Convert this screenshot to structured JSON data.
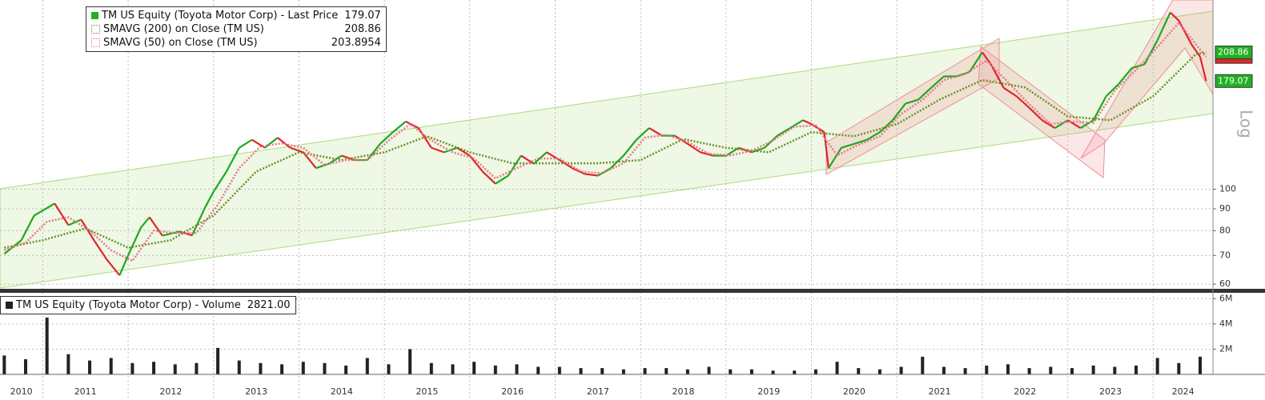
{
  "chart_data": [
    {
      "type": "line",
      "log_scale": true,
      "scale_label": "Log",
      "grid": true,
      "legend": "top-left",
      "xlim": [
        2010.5,
        2024.7
      ],
      "xticks": [
        2010,
        2011,
        2012,
        2013,
        2014,
        2015,
        2016,
        2017,
        2018,
        2019,
        2020,
        2021,
        2022,
        2023,
        2024
      ],
      "ylim": [
        58.5,
        277
      ],
      "yticks": [
        60,
        70,
        80,
        90,
        100
      ],
      "series": [
        {
          "name": "TM US Equity (Toyota Motor Corp) - Last Price",
          "color": "#22b022",
          "up_color": "#1fa81f",
          "down_color": "#e0262b",
          "last": 179.07,
          "x": [
            2010.55,
            2010.75,
            2010.9,
            2011.14,
            2011.3,
            2011.45,
            2011.6,
            2011.75,
            2011.9,
            2012.0,
            2012.15,
            2012.25,
            2012.4,
            2012.6,
            2012.75,
            2012.9,
            2013.0,
            2013.15,
            2013.3,
            2013.45,
            2013.6,
            2013.75,
            2013.9,
            2014.05,
            2014.2,
            2014.35,
            2014.5,
            2014.65,
            2014.8,
            2014.95,
            2015.1,
            2015.25,
            2015.4,
            2015.55,
            2015.7,
            2015.85,
            2016.0,
            2016.15,
            2016.3,
            2016.45,
            2016.6,
            2016.75,
            2016.9,
            2017.05,
            2017.2,
            2017.35,
            2017.5,
            2017.65,
            2017.8,
            2017.95,
            2018.1,
            2018.25,
            2018.4,
            2018.55,
            2018.7,
            2018.85,
            2019.0,
            2019.15,
            2019.3,
            2019.45,
            2019.6,
            2019.75,
            2019.9,
            2020.0,
            2020.15,
            2020.2,
            2020.35,
            2020.5,
            2020.65,
            2020.8,
            2020.95,
            2021.1,
            2021.25,
            2021.4,
            2021.55,
            2021.7,
            2021.85,
            2022.0,
            2022.1,
            2022.25,
            2022.4,
            2022.55,
            2022.7,
            2022.85,
            2023.0,
            2023.15,
            2023.3,
            2023.45,
            2023.6,
            2023.75,
            2023.9,
            2024.05,
            2024.2,
            2024.3,
            2024.45,
            2024.55,
            2024.62
          ],
          "values": [
            70.6,
            76,
            86.8,
            92.6,
            82.4,
            84.9,
            76,
            68.5,
            62.9,
            70,
            81.4,
            86,
            77.9,
            79.6,
            78,
            90.6,
            98.7,
            109.9,
            125,
            130.5,
            125,
            132,
            125,
            122,
            112,
            114.7,
            119.8,
            117,
            117,
            127.7,
            136,
            144,
            139,
            125,
            122,
            125,
            119.8,
            110,
            103,
            107.6,
            119.8,
            114.7,
            122,
            117,
            112,
            108.5,
            107.6,
            112,
            119.8,
            130.5,
            139,
            133.4,
            133.4,
            127.7,
            122,
            119.8,
            119.8,
            125,
            122,
            125,
            133.4,
            139,
            145,
            142,
            136,
            112,
            125,
            127.7,
            130.5,
            136,
            145,
            158.5,
            162,
            172.6,
            183.6,
            183.6,
            188,
            209,
            196,
            172.6,
            165,
            155,
            145,
            139,
            145,
            139,
            145,
            165,
            176.5,
            192,
            196,
            223,
            259,
            248,
            218,
            204,
            179.07
          ]
        },
        {
          "name": "SMAVG (200)  on Close (TM US)",
          "color": "#6b8e23",
          "last": 208.86,
          "x": [
            2010.55,
            2011.0,
            2011.5,
            2012.0,
            2012.5,
            2013.0,
            2013.5,
            2014.0,
            2014.5,
            2015.0,
            2015.5,
            2016.0,
            2016.5,
            2017.0,
            2017.5,
            2018.0,
            2018.5,
            2019.0,
            2019.5,
            2020.0,
            2020.5,
            2021.0,
            2021.5,
            2022.0,
            2022.5,
            2023.0,
            2023.5,
            2024.0,
            2024.5,
            2024.62
          ],
          "values": [
            73,
            76,
            81,
            73,
            76,
            86.8,
            110,
            122,
            117,
            122,
            133,
            122,
            115,
            115,
            115,
            117,
            131,
            125,
            122,
            136,
            133,
            142,
            162,
            180,
            173,
            148,
            145,
            165,
            207,
            208.86
          ]
        },
        {
          "name": "SMAVG (50)  on Close (TM US)",
          "color": "#e8748a",
          "last": 203.8954,
          "x": [
            2010.55,
            2010.8,
            2011.05,
            2011.3,
            2011.55,
            2011.8,
            2012.05,
            2012.3,
            2012.55,
            2012.8,
            2013.05,
            2013.3,
            2013.55,
            2013.8,
            2014.05,
            2014.3,
            2014.55,
            2014.8,
            2015.05,
            2015.3,
            2015.55,
            2015.8,
            2016.05,
            2016.3,
            2016.55,
            2016.8,
            2017.05,
            2017.3,
            2017.55,
            2017.8,
            2018.05,
            2018.3,
            2018.55,
            2018.8,
            2019.05,
            2019.3,
            2019.55,
            2019.8,
            2020.05,
            2020.3,
            2020.55,
            2020.8,
            2021.05,
            2021.3,
            2021.55,
            2021.8,
            2022.05,
            2022.3,
            2022.55,
            2022.8,
            2023.05,
            2023.3,
            2023.55,
            2023.8,
            2024.05,
            2024.3,
            2024.55,
            2024.62
          ],
          "values": [
            72,
            75,
            84,
            86,
            80,
            72,
            68,
            80,
            79,
            79,
            92,
            112,
            126,
            128,
            125,
            114,
            117,
            117,
            130,
            142,
            130,
            122,
            118,
            106,
            112,
            118,
            118,
            110,
            109,
            115,
            132,
            134,
            129,
            121,
            120,
            123,
            130,
            140,
            141,
            120,
            127,
            133,
            150,
            162,
            180,
            186,
            200,
            178,
            158,
            142,
            144,
            143,
            170,
            190,
            215,
            245,
            212,
            203.8954
          ]
        }
      ]
    },
    {
      "type": "bar",
      "xlim": [
        2010.5,
        2024.7
      ],
      "ylim": [
        0,
        6400000
      ],
      "yticks": [
        {
          "value": 2000000,
          "label": "2M"
        },
        {
          "value": 4000000,
          "label": "4M"
        },
        {
          "value": 6000000,
          "label": "6M"
        }
      ],
      "series": [
        {
          "name": "TM US Equity (Toyota Motor Corp) - Volume",
          "color": "#222222",
          "last": 2821,
          "last_label": "2821.00",
          "x": [
            2010.55,
            2010.8,
            2011.05,
            2011.3,
            2011.55,
            2011.8,
            2012.05,
            2012.3,
            2012.55,
            2012.8,
            2013.05,
            2013.3,
            2013.55,
            2013.8,
            2014.05,
            2014.3,
            2014.55,
            2014.8,
            2015.05,
            2015.3,
            2015.55,
            2015.8,
            2016.05,
            2016.3,
            2016.55,
            2016.8,
            2017.05,
            2017.3,
            2017.55,
            2017.8,
            2018.05,
            2018.3,
            2018.55,
            2018.8,
            2019.05,
            2019.3,
            2019.55,
            2019.8,
            2020.05,
            2020.3,
            2020.55,
            2020.8,
            2021.05,
            2021.3,
            2021.55,
            2021.8,
            2022.05,
            2022.3,
            2022.55,
            2022.8,
            2023.05,
            2023.3,
            2023.55,
            2023.8,
            2024.05,
            2024.3,
            2024.55
          ],
          "values": [
            1500000,
            1200000,
            4500000,
            1600000,
            1100000,
            1300000,
            900000,
            1000000,
            800000,
            900000,
            2100000,
            1100000,
            900000,
            800000,
            1000000,
            900000,
            700000,
            1300000,
            800000,
            2000000,
            900000,
            800000,
            1000000,
            700000,
            800000,
            600000,
            600000,
            500000,
            500000,
            400000,
            500000,
            500000,
            400000,
            600000,
            400000,
            400000,
            300000,
            300000,
            400000,
            1000000,
            500000,
            400000,
            600000,
            1400000,
            600000,
            500000,
            700000,
            800000,
            500000,
            600000,
            500000,
            700000,
            600000,
            700000,
            1300000,
            900000,
            1400000
          ]
        }
      ]
    }
  ]
}
